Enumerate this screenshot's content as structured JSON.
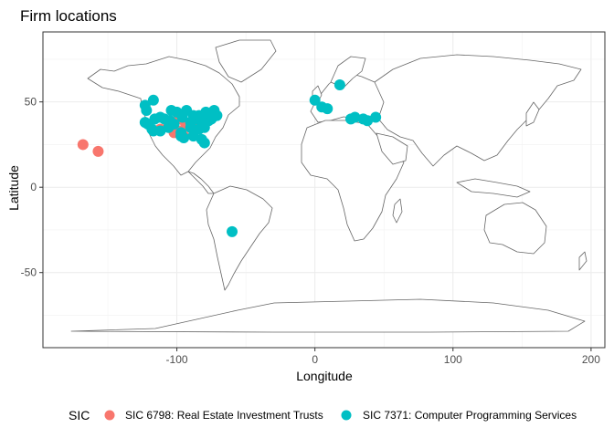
{
  "chart_data": {
    "type": "scatter",
    "title": "Firm locations",
    "xlabel": "Longitude",
    "ylabel": "Latitude",
    "xlim": [
      -197,
      210
    ],
    "ylim": [
      -94,
      91
    ],
    "x_ticks": [
      -100,
      0,
      100,
      200
    ],
    "x_tick_labels": [
      "-100",
      "0",
      "100",
      "200"
    ],
    "y_ticks": [
      -50,
      0,
      50
    ],
    "y_tick_labels": [
      "-50",
      "0",
      "50"
    ],
    "grid": true,
    "legend_position": "bottom",
    "legend_title": "SIC",
    "series": [
      {
        "name": "SIC 6798: Real Estate Investment Trusts",
        "color": "#F8766D",
        "points": [
          {
            "x": -168,
            "y": 25
          },
          {
            "x": -157,
            "y": 21
          },
          {
            "x": -102,
            "y": 32
          },
          {
            "x": -97,
            "y": 33
          },
          {
            "x": -95,
            "y": 30
          },
          {
            "x": -99,
            "y": 40
          },
          {
            "x": -94,
            "y": 38
          },
          {
            "x": -90,
            "y": 35
          },
          {
            "x": -86,
            "y": 37
          },
          {
            "x": -84,
            "y": 39
          },
          {
            "x": -80,
            "y": 41
          },
          {
            "x": -106,
            "y": 36
          },
          {
            "x": -112,
            "y": 34
          },
          {
            "x": -97,
            "y": 42
          }
        ]
      },
      {
        "name": "SIC 7371: Computer Programming Services",
        "color": "#00BFC4",
        "points": [
          {
            "x": -123,
            "y": 48
          },
          {
            "x": -117,
            "y": 51
          },
          {
            "x": -122,
            "y": 45
          },
          {
            "x": -123,
            "y": 38
          },
          {
            "x": -121,
            "y": 37
          },
          {
            "x": -118,
            "y": 34
          },
          {
            "x": -117,
            "y": 33
          },
          {
            "x": -112,
            "y": 33
          },
          {
            "x": -116,
            "y": 40
          },
          {
            "x": -112,
            "y": 41
          },
          {
            "x": -105,
            "y": 39
          },
          {
            "x": -106,
            "y": 35
          },
          {
            "x": -97,
            "y": 32
          },
          {
            "x": -95,
            "y": 29
          },
          {
            "x": -97,
            "y": 30
          },
          {
            "x": -93,
            "y": 45
          },
          {
            "x": -88,
            "y": 42
          },
          {
            "x": -90,
            "y": 38
          },
          {
            "x": -86,
            "y": 40
          },
          {
            "x": -84,
            "y": 42
          },
          {
            "x": -83,
            "y": 40
          },
          {
            "x": -84,
            "y": 34
          },
          {
            "x": -80,
            "y": 35
          },
          {
            "x": -82,
            "y": 28
          },
          {
            "x": -80,
            "y": 26
          },
          {
            "x": -77,
            "y": 39
          },
          {
            "x": -75,
            "y": 40
          },
          {
            "x": -74,
            "y": 41
          },
          {
            "x": -71,
            "y": 42
          },
          {
            "x": -73,
            "y": 45
          },
          {
            "x": -79,
            "y": 44
          },
          {
            "x": -76,
            "y": 43
          },
          {
            "x": -88,
            "y": 30
          },
          {
            "x": -90,
            "y": 35
          },
          {
            "x": -100,
            "y": 44
          },
          {
            "x": -96,
            "y": 41
          },
          {
            "x": -102,
            "y": 37
          },
          {
            "x": -109,
            "y": 40
          },
          {
            "x": -104,
            "y": 45
          },
          {
            "x": -60,
            "y": -26
          },
          {
            "x": 0,
            "y": 51
          },
          {
            "x": 5,
            "y": 47
          },
          {
            "x": 9,
            "y": 46
          },
          {
            "x": 18,
            "y": 60
          },
          {
            "x": 29,
            "y": 41
          },
          {
            "x": 26,
            "y": 40
          },
          {
            "x": 38,
            "y": 39
          },
          {
            "x": 44,
            "y": 41
          },
          {
            "x": 35,
            "y": 40
          }
        ]
      }
    ]
  }
}
